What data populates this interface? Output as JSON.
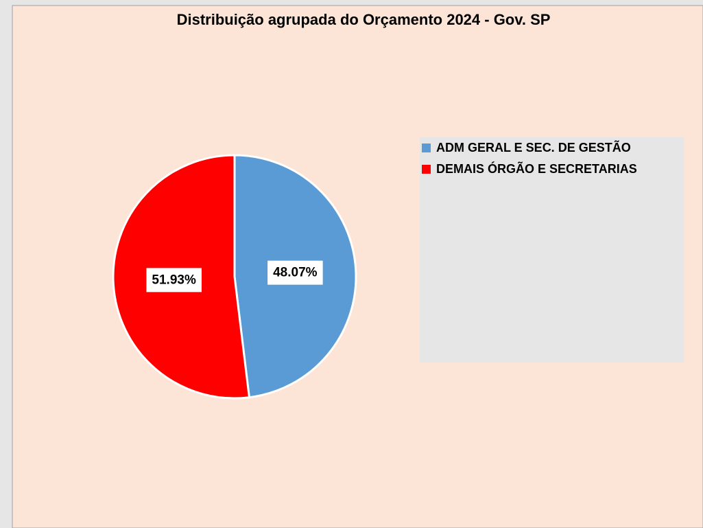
{
  "chart_data": {
    "type": "pie",
    "title": "Distribuição agrupada do Orçamento 2024 - Gov. SP",
    "categories": [
      "ADM GERAL E SEC. DE GESTÃO",
      "DEMAIS ÓRGÃO E SECRETARIAS"
    ],
    "values": [
      48.07,
      51.93
    ],
    "value_labels": [
      "48.07%",
      "51.93%"
    ],
    "colors": [
      "#5b9bd5",
      "#ff0000"
    ],
    "legend": "right"
  }
}
